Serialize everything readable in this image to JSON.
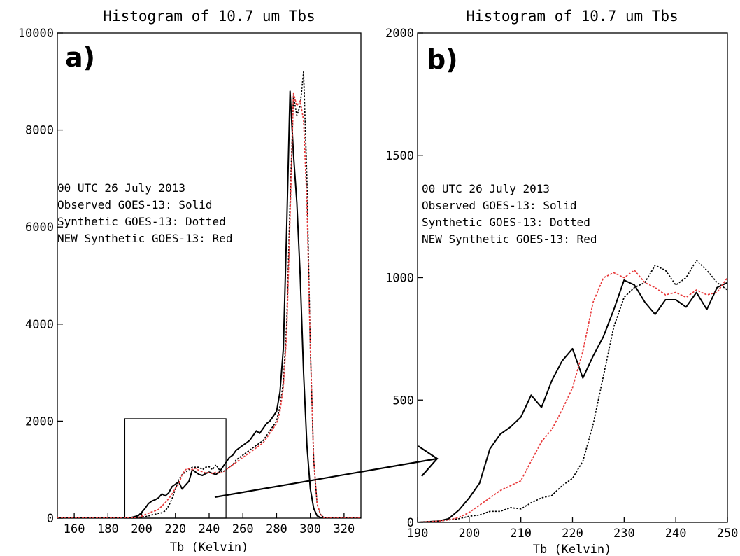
{
  "chart_data": [
    {
      "id": "a",
      "type": "line",
      "panel_label": "a)",
      "title": "Histogram of 10.7 um Tbs",
      "xlabel": "Tb (Kelvin)",
      "ylabel": "",
      "xlim": [
        150,
        330
      ],
      "ylim": [
        0,
        10000
      ],
      "xticks": [
        160,
        180,
        200,
        220,
        240,
        260,
        280,
        300,
        320
      ],
      "yticks": [
        0,
        2000,
        4000,
        6000,
        8000,
        10000
      ],
      "grid": false,
      "annotation_lines": [
        "00 UTC 26 July 2013",
        "Observed GOES-13: Solid",
        "Synthetic GOES-13: Dotted",
        "NEW Synthetic GOES-13: Red"
      ],
      "zoom_box": {
        "x": [
          190,
          250
        ],
        "y": [
          0,
          2050
        ]
      },
      "series": [
        {
          "style": "solid",
          "color": "#000000",
          "x": [
            150,
            186,
            190,
            194,
            198,
            200,
            202,
            204,
            206,
            208,
            210,
            212,
            214,
            216,
            218,
            220,
            222,
            224,
            226,
            228,
            230,
            232,
            234,
            236,
            238,
            240,
            242,
            244,
            246,
            248,
            250,
            252,
            254,
            256,
            258,
            260,
            262,
            264,
            266,
            268,
            270,
            272,
            274,
            276,
            278,
            280,
            282,
            284,
            286,
            288,
            290,
            292,
            294,
            296,
            298,
            300,
            302,
            304,
            306,
            308,
            310,
            330
          ],
          "y": [
            0,
            0,
            5,
            15,
            50,
            120,
            200,
            300,
            350,
            380,
            420,
            500,
            460,
            520,
            650,
            700,
            750,
            600,
            680,
            760,
            1000,
            950,
            900,
            880,
            920,
            950,
            920,
            900,
            950,
            1050,
            1150,
            1250,
            1300,
            1400,
            1450,
            1500,
            1550,
            1600,
            1700,
            1800,
            1750,
            1850,
            1950,
            2000,
            2100,
            2200,
            2600,
            3500,
            6000,
            8800,
            7500,
            6500,
            5000,
            3000,
            1500,
            600,
            200,
            50,
            10,
            0,
            0,
            0
          ]
        },
        {
          "style": "dotted",
          "color": "#000000",
          "x": [
            150,
            190,
            194,
            198,
            200,
            202,
            204,
            206,
            208,
            210,
            212,
            214,
            216,
            218,
            220,
            222,
            224,
            226,
            228,
            230,
            232,
            234,
            236,
            238,
            240,
            242,
            244,
            246,
            248,
            250,
            252,
            254,
            256,
            258,
            260,
            262,
            264,
            266,
            268,
            270,
            272,
            274,
            276,
            278,
            280,
            282,
            284,
            286,
            288,
            290,
            292,
            294,
            296,
            298,
            300,
            302,
            304,
            306,
            308,
            310,
            330
          ],
          "y": [
            0,
            0,
            5,
            15,
            25,
            30,
            45,
            65,
            80,
            100,
            110,
            150,
            250,
            400,
            600,
            800,
            900,
            950,
            1000,
            1050,
            1050,
            1050,
            1000,
            1050,
            1060,
            1000,
            1100,
            1000,
            950,
            1000,
            1050,
            1100,
            1200,
            1250,
            1300,
            1350,
            1400,
            1450,
            1500,
            1550,
            1600,
            1700,
            1800,
            1900,
            2000,
            2300,
            2800,
            4000,
            6500,
            8700,
            8300,
            8500,
            9200,
            7000,
            3500,
            1200,
            300,
            80,
            10,
            0,
            0
          ]
        },
        {
          "style": "dashed",
          "color": "#e8393a",
          "x": [
            150,
            190,
            194,
            198,
            200,
            202,
            204,
            206,
            208,
            210,
            212,
            214,
            216,
            218,
            220,
            222,
            224,
            226,
            228,
            230,
            232,
            234,
            236,
            238,
            240,
            242,
            244,
            246,
            248,
            250,
            252,
            254,
            256,
            258,
            260,
            262,
            264,
            266,
            268,
            270,
            272,
            274,
            276,
            278,
            280,
            282,
            284,
            286,
            288,
            290,
            292,
            294,
            296,
            298,
            300,
            302,
            304,
            306,
            308,
            310,
            330
          ],
          "y": [
            0,
            0,
            5,
            15,
            40,
            70,
            100,
            130,
            150,
            180,
            250,
            320,
            400,
            500,
            620,
            700,
            900,
            1000,
            1020,
            1000,
            1030,
            980,
            960,
            930,
            940,
            920,
            950,
            930,
            940,
            1000,
            1050,
            1100,
            1150,
            1200,
            1250,
            1300,
            1350,
            1400,
            1450,
            1500,
            1550,
            1650,
            1750,
            1850,
            1950,
            2200,
            2700,
            3800,
            6200,
            8750,
            8500,
            8600,
            8200,
            6500,
            3500,
            1200,
            300,
            80,
            10,
            0,
            0
          ]
        }
      ]
    },
    {
      "id": "b",
      "type": "line",
      "panel_label": "b)",
      "title": "Histogram of 10.7 um Tbs",
      "xlabel": "Tb (Kelvin)",
      "ylabel": "",
      "xlim": [
        190,
        250
      ],
      "ylim": [
        0,
        2000
      ],
      "xticks": [
        190,
        200,
        210,
        220,
        230,
        240,
        250
      ],
      "yticks": [
        0,
        500,
        1000,
        1500,
        2000
      ],
      "grid": false,
      "annotation_lines": [
        "00 UTC 26 July 2013",
        "Observed GOES-13: Solid",
        "Synthetic GOES-13: Dotted",
        "NEW Synthetic GOES-13: Red"
      ],
      "series": [
        {
          "style": "solid",
          "color": "#000000",
          "x": [
            190,
            194,
            196,
            198,
            200,
            202,
            204,
            206,
            208,
            210,
            212,
            214,
            216,
            218,
            220,
            222,
            224,
            226,
            228,
            230,
            232,
            234,
            236,
            238,
            240,
            242,
            244,
            246,
            248,
            250
          ],
          "y": [
            0,
            5,
            15,
            50,
            100,
            160,
            300,
            360,
            390,
            430,
            520,
            470,
            580,
            660,
            710,
            590,
            680,
            760,
            870,
            990,
            970,
            900,
            850,
            910,
            910,
            880,
            940,
            870,
            960,
            980
          ]
        },
        {
          "style": "dotted",
          "color": "#000000",
          "x": [
            190,
            194,
            196,
            198,
            200,
            202,
            204,
            206,
            208,
            210,
            212,
            214,
            216,
            218,
            220,
            222,
            224,
            226,
            228,
            230,
            232,
            234,
            236,
            238,
            240,
            242,
            244,
            246,
            248,
            250
          ],
          "y": [
            0,
            5,
            10,
            15,
            25,
            30,
            45,
            45,
            60,
            55,
            80,
            100,
            110,
            150,
            180,
            250,
            400,
            600,
            800,
            920,
            960,
            980,
            1050,
            1030,
            970,
            1000,
            1070,
            1030,
            980,
            950
          ]
        },
        {
          "style": "dashed",
          "color": "#e8393a",
          "x": [
            190,
            194,
            196,
            198,
            200,
            202,
            204,
            206,
            208,
            210,
            212,
            214,
            216,
            218,
            220,
            222,
            224,
            226,
            228,
            230,
            232,
            234,
            236,
            238,
            240,
            242,
            244,
            246,
            248,
            250
          ],
          "y": [
            0,
            5,
            10,
            20,
            40,
            70,
            100,
            130,
            150,
            170,
            250,
            330,
            380,
            460,
            550,
            700,
            900,
            1000,
            1020,
            1000,
            1030,
            980,
            960,
            930,
            940,
            920,
            950,
            930,
            940,
            1000
          ]
        }
      ]
    }
  ]
}
